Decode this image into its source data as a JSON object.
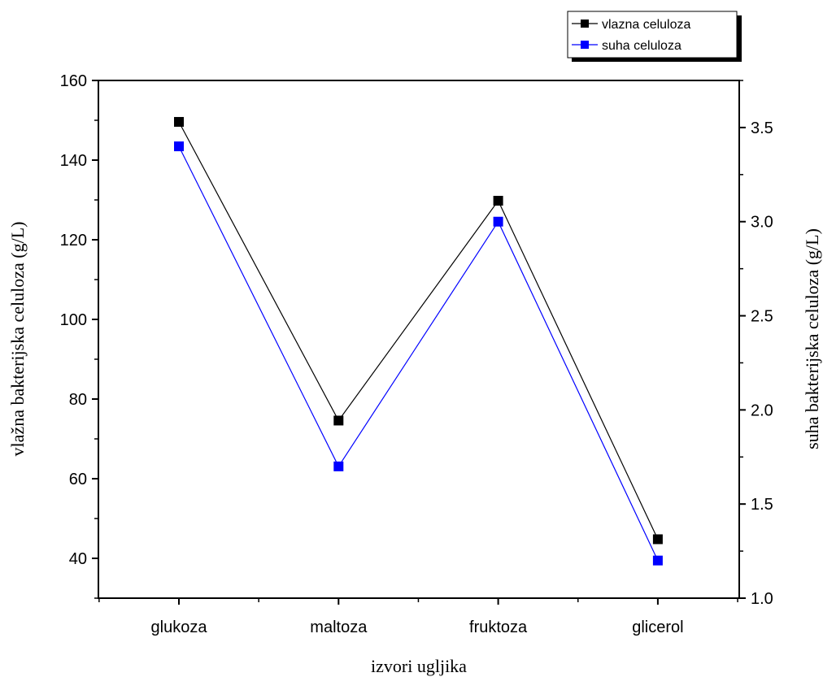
{
  "chart_data": {
    "type": "line",
    "categories": [
      "glukoza",
      "maltoza",
      "fruktoza",
      "glicerol"
    ],
    "xlabel": "izvori ugljika",
    "ylabel_left": "vlažna bakterijska celuloza (g/L)",
    "ylabel_right": "suha bakterijska celuloza (g/L)",
    "ylim_left": [
      30,
      160
    ],
    "ylim_right": [
      1.0,
      3.75
    ],
    "yticks_left": [
      40,
      60,
      80,
      100,
      120,
      140,
      160
    ],
    "yticks_right": [
      1.0,
      1.5,
      2.0,
      2.5,
      3.0,
      3.5
    ],
    "ytick_labels_left": [
      "40",
      "60",
      "80",
      "100",
      "120",
      "140",
      "160"
    ],
    "ytick_labels_right": [
      "1.0",
      "1.5",
      "2.0",
      "2.5",
      "3.0",
      "3.5"
    ],
    "series": [
      {
        "name": "vlazna celuloza",
        "axis": "left",
        "color": "#000000",
        "marker": "square",
        "values": [
          149.6,
          74.6,
          129.8,
          44.8
        ]
      },
      {
        "name": "suha celuloza",
        "axis": "right",
        "color": "#0000ff",
        "marker": "square",
        "values": [
          3.4,
          1.7,
          3.0,
          1.2
        ]
      }
    ],
    "legend_position": "top-right, above plot",
    "grid": false
  }
}
